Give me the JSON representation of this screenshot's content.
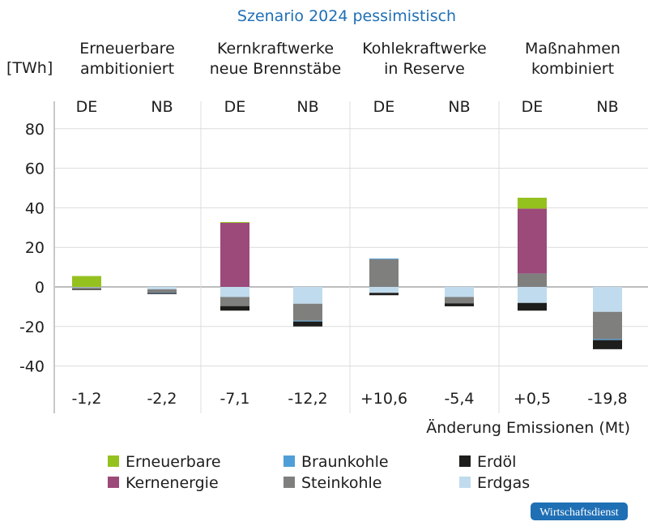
{
  "chart_data": {
    "type": "bar",
    "stacked": true,
    "title": "Szenario 2024 pessimistisch",
    "ylabel": "[TWh]",
    "ylim": [
      -50,
      90
    ],
    "yticks": [
      80,
      60,
      40,
      20,
      0,
      -20,
      -40
    ],
    "grid": true,
    "legend_placement": "bottom",
    "groups": [
      "Erneuerbare ambitioniert",
      "Kernkraftwerke neue Brennstäbe",
      "Kohlekraftwerke in Reserve",
      "Maßnahmen kombiniert"
    ],
    "group_lines": [
      [
        "Erneuerbare",
        "ambitioniert"
      ],
      [
        "Kernkraftwerke",
        "neue Brennstäbe"
      ],
      [
        "Kohlekraftwerke",
        "in Reserve"
      ],
      [
        "Maßnahmen",
        "kombiniert"
      ]
    ],
    "categories": [
      "DE",
      "NB",
      "DE",
      "NB",
      "DE",
      "NB",
      "DE",
      "NB"
    ],
    "emissions_label": "Änderung Emissionen (Mt)",
    "emissions": [
      "-1,2",
      "-2,2",
      "-7,1",
      "-12,2",
      "+10,6",
      "-5,4",
      "+0,5",
      "-19,8"
    ],
    "series": [
      {
        "name": "Erneuerbare",
        "color": "#95c11f",
        "values": [
          5.5,
          0,
          0.4,
          0,
          0,
          0,
          5.5,
          0
        ]
      },
      {
        "name": "Kernenergie",
        "color": "#9b4a7a",
        "values": [
          0,
          0,
          32.4,
          0,
          0,
          0,
          32.8,
          0
        ]
      },
      {
        "name": "Braunkohle",
        "color": "#4f9fd6",
        "values": [
          0,
          -0.2,
          0,
          -0.4,
          0.4,
          0,
          0,
          -0.5
        ]
      },
      {
        "name": "Steinkohle",
        "color": "#7f7f7e",
        "values": [
          -1.0,
          -1.7,
          -4.6,
          -8.6,
          14.0,
          -3.2,
          6.8,
          -13.8
        ]
      },
      {
        "name": "Erdöl",
        "color": "#1d1d1b",
        "values": [
          -0.3,
          -0.5,
          -2.3,
          -2.5,
          -1.2,
          -1.5,
          -3.9,
          -4.6
        ]
      },
      {
        "name": "Erdgas",
        "color": "#c0dbed",
        "values": [
          -0.3,
          -1.2,
          -5.1,
          -8.5,
          -3.0,
          -5.1,
          -8.1,
          -12.6
        ]
      }
    ]
  },
  "logo": "Wirtschaftsdienst",
  "colors": {
    "title": "#1f6fb5",
    "logo_bg": "#1f6fb5"
  }
}
